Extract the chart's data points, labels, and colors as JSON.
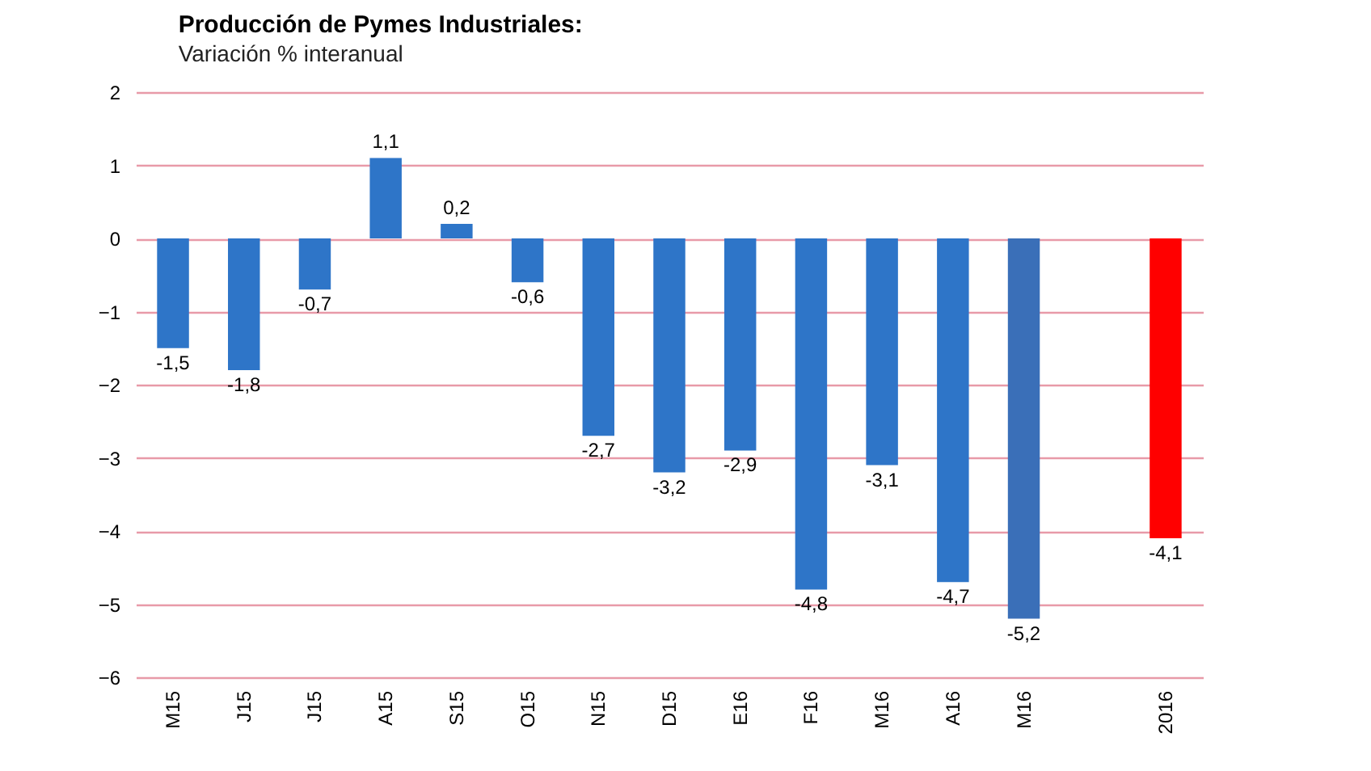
{
  "chart_data": {
    "type": "bar",
    "title": "Producción de Pymes Industriales:",
    "subtitle": "Variación % interanual",
    "categories": [
      "M15",
      "J15",
      "J15",
      "A15",
      "S15",
      "O15",
      "N15",
      "D15",
      "E16",
      "F16",
      "M16",
      "A16",
      "M16",
      null,
      "2016"
    ],
    "values": [
      -1.5,
      -1.8,
      -0.7,
      1.1,
      0.2,
      -0.6,
      -2.7,
      -3.2,
      -2.9,
      -4.8,
      -3.1,
      -4.7,
      -5.2,
      null,
      -4.1
    ],
    "value_labels": [
      "-1,5",
      "-1,8",
      "-0,7",
      "1,1",
      "0,2",
      "-0,6",
      "-2,7",
      "-3,2",
      "-2,9",
      "-4,8",
      "-3,1",
      "-4,7",
      "-5,2",
      null,
      "-4,1"
    ],
    "colors": [
      "#2e75c8",
      "#2e75c8",
      "#2e75c8",
      "#2e75c8",
      "#2e75c8",
      "#2e75c8",
      "#2e75c8",
      "#2e75c8",
      "#2e75c8",
      "#2e75c8",
      "#2e75c8",
      "#2e75c8",
      "#3a6fb8",
      "#2e75c8",
      "#ff0000"
    ],
    "ylim": [
      -6,
      2
    ],
    "yticks": [
      -6,
      -5,
      -4,
      -3,
      -2,
      -1,
      0,
      1,
      2
    ],
    "grid": "y"
  }
}
